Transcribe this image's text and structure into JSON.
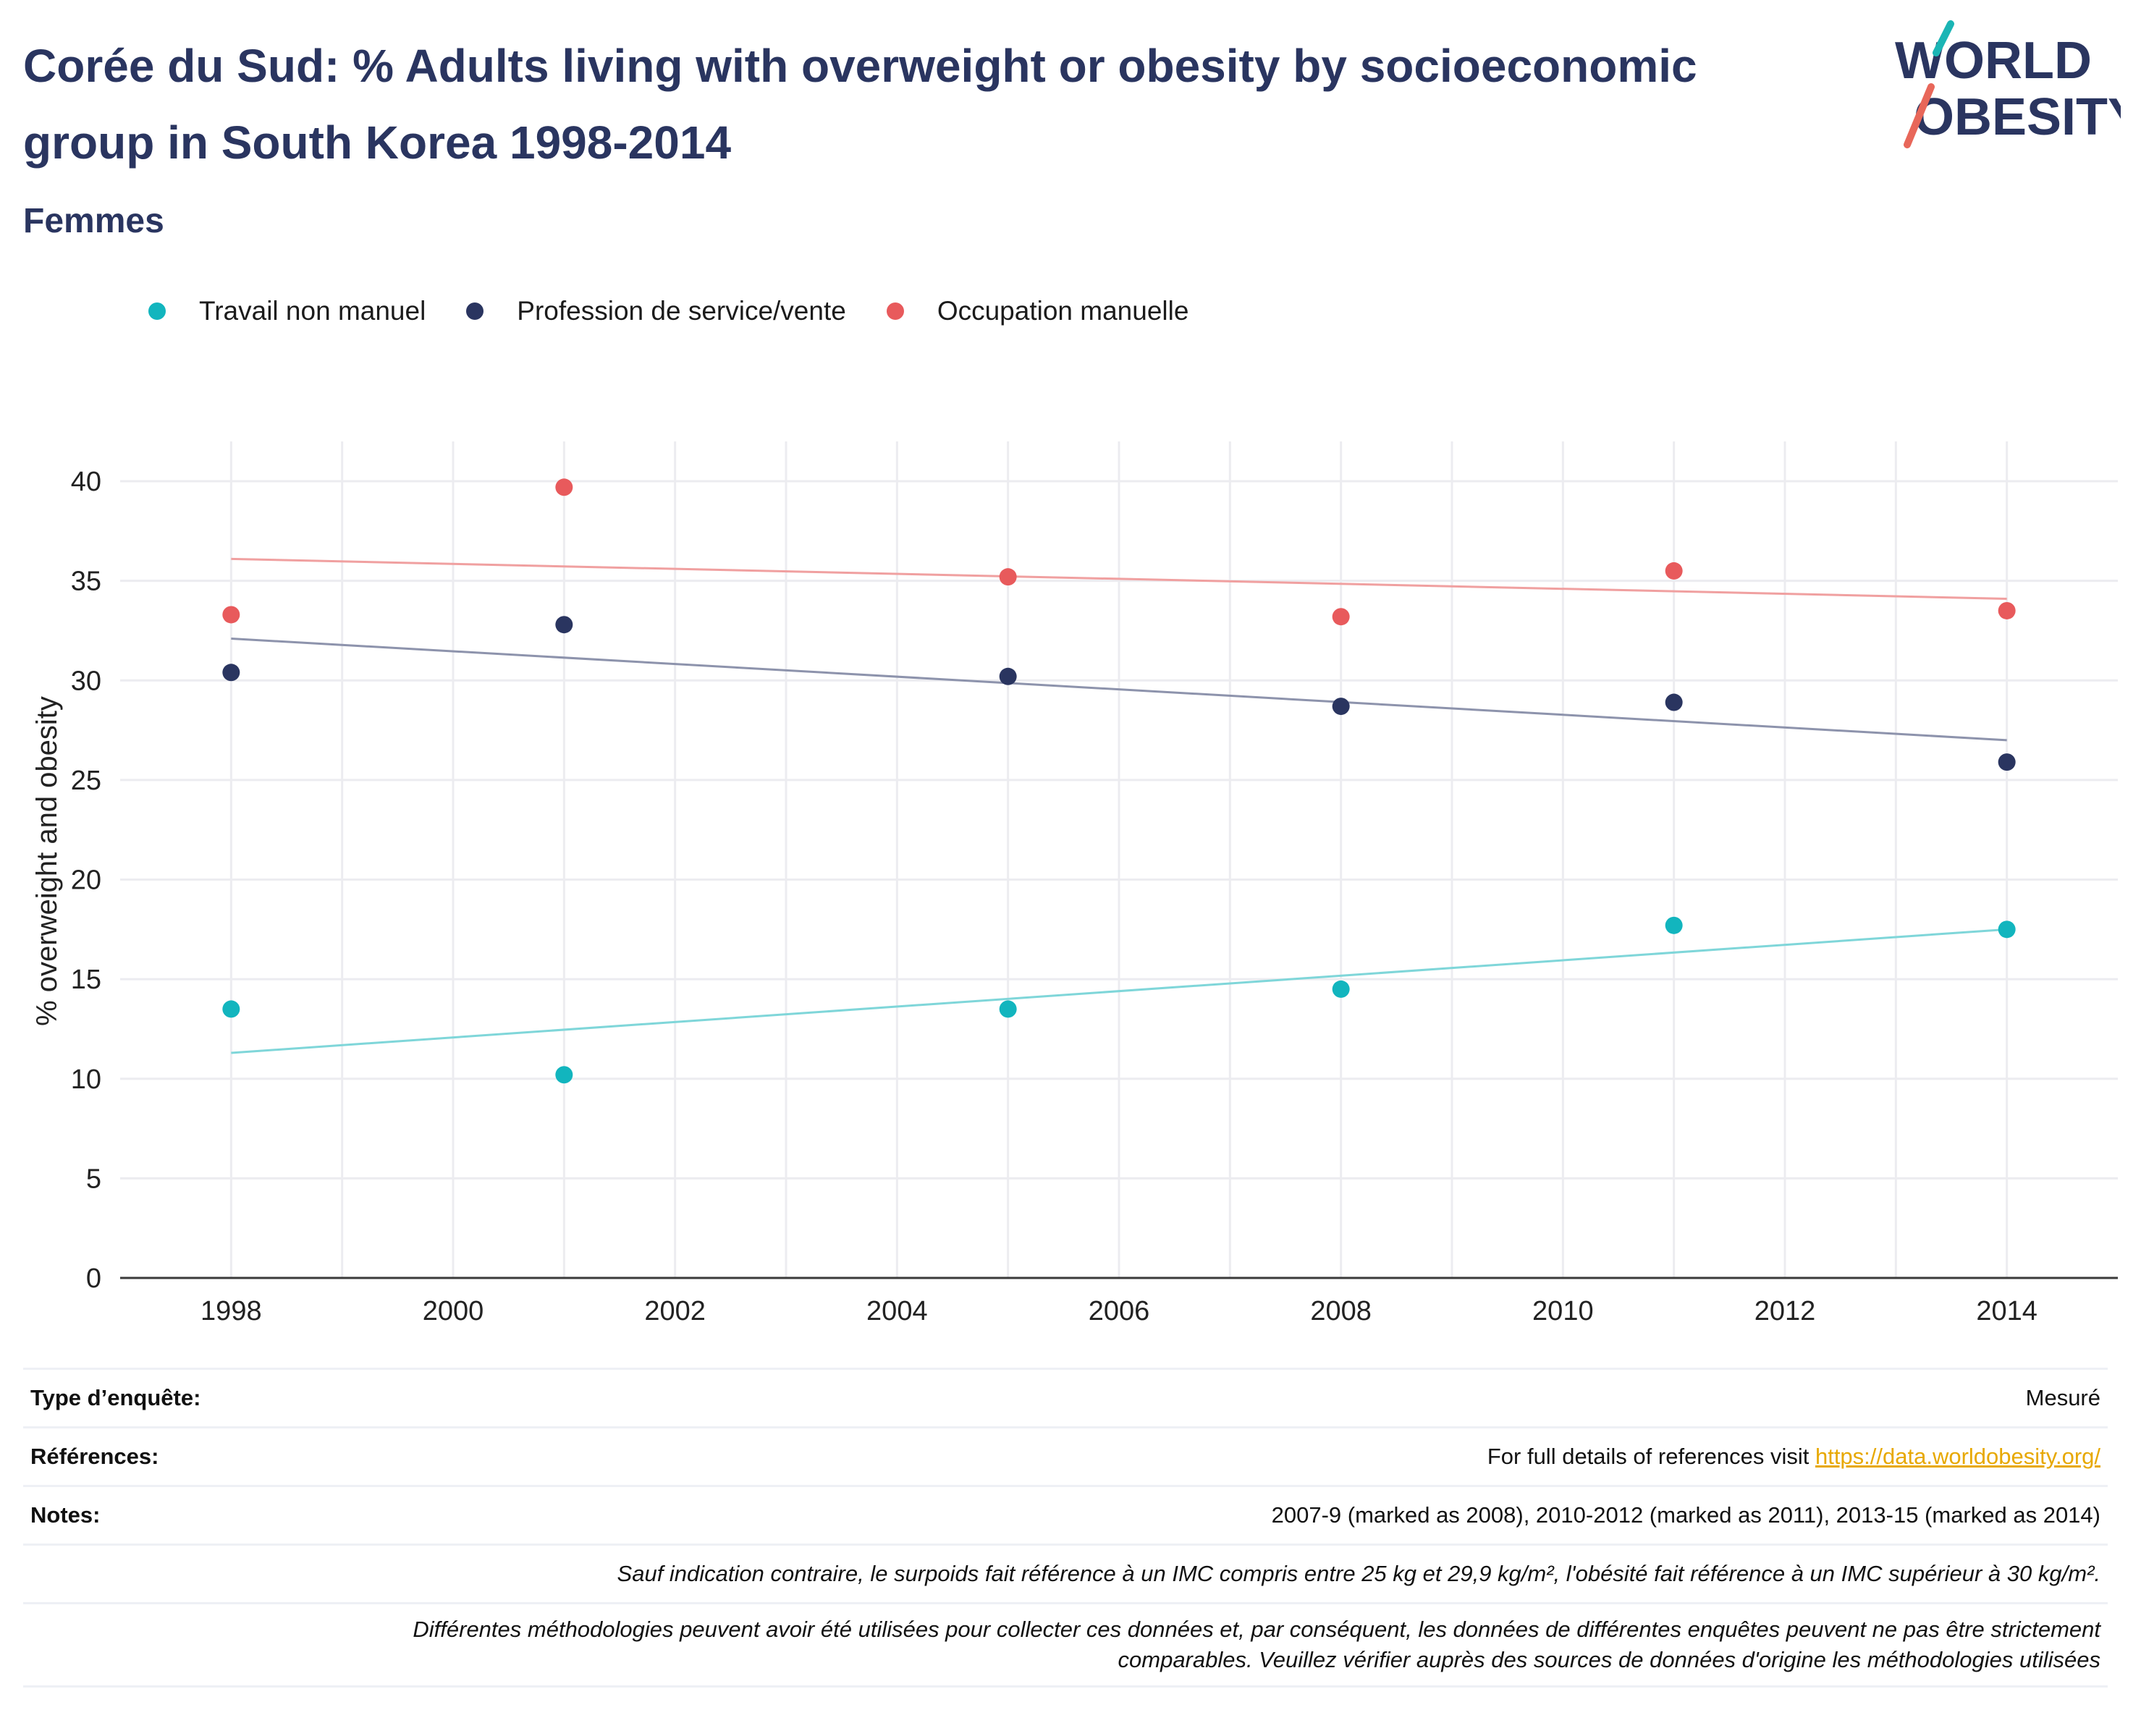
{
  "header": {
    "title": "Corée du Sud: % Adults living with overweight or obesity by socioeconomic group in South Korea 1998-2014",
    "subtitle": "Femmes"
  },
  "logo": {
    "line1": "WORLD",
    "line2": "OBESITY",
    "text_color": "#2a3560",
    "accent_teal": "#1bb5b5",
    "accent_red": "#e8675a"
  },
  "legend": [
    {
      "label": "Travail non manuel",
      "color": "#12b5be"
    },
    {
      "label": "Profession de service/vente",
      "color": "#2a3560"
    },
    {
      "label": "Occupation manuelle",
      "color": "#e85a5c"
    }
  ],
  "chart_data": {
    "type": "scatter",
    "title": "",
    "xlabel": "",
    "ylabel": "% overweight and obesity",
    "xlim": [
      1997,
      2015
    ],
    "ylim": [
      0,
      42
    ],
    "xticks": [
      1998,
      2000,
      2002,
      2004,
      2006,
      2008,
      2010,
      2012,
      2014
    ],
    "yticks": [
      0,
      5,
      10,
      15,
      20,
      25,
      30,
      35,
      40
    ],
    "grid": true,
    "trendlines": true,
    "series": [
      {
        "name": "Travail non manuel",
        "color": "#12b5be",
        "trend_color": "#7fd6d9",
        "points": [
          [
            1998,
            13.5
          ],
          [
            2001,
            10.2
          ],
          [
            2005,
            13.5
          ],
          [
            2008,
            14.5
          ],
          [
            2011,
            17.7
          ],
          [
            2014,
            17.5
          ]
        ],
        "trend": [
          [
            1998,
            11.3
          ],
          [
            2014,
            17.5
          ]
        ]
      },
      {
        "name": "Profession de service/vente",
        "color": "#2a3560",
        "trend_color": "#8d93ac",
        "points": [
          [
            1998,
            30.4
          ],
          [
            2001,
            32.8
          ],
          [
            2005,
            30.2
          ],
          [
            2008,
            28.7
          ],
          [
            2011,
            28.9
          ],
          [
            2014,
            25.9
          ]
        ],
        "trend": [
          [
            1998,
            32.1
          ],
          [
            2014,
            27.0
          ]
        ]
      },
      {
        "name": "Occupation manuelle",
        "color": "#e85a5c",
        "trend_color": "#f0a0a0",
        "points": [
          [
            1998,
            33.3
          ],
          [
            2001,
            39.7
          ],
          [
            2005,
            35.2
          ],
          [
            2008,
            33.2
          ],
          [
            2011,
            35.5
          ],
          [
            2014,
            33.5
          ]
        ],
        "trend": [
          [
            1998,
            36.1
          ],
          [
            2014,
            34.1
          ]
        ]
      }
    ]
  },
  "info": {
    "survey_type_label": "Type d’enquête:",
    "survey_type_value": "Mesuré",
    "references_label": "Références:",
    "references_prefix": "For full details of references visit ",
    "references_link": "https://data.worldobesity.org/",
    "notes_label": "Notes:",
    "notes_value": "2007-9 (marked as 2008), 2010-2012 (marked as 2011), 2013-15 (marked as 2014)",
    "definition": "Sauf indication contraire, le surpoids fait référence à un IMC compris entre 25 kg et 29,9 kg/m², l'obésité fait référence à un IMC supérieur à 30 kg/m².",
    "methodology_line1": "Différentes méthodologies peuvent avoir été utilisées pour collecter ces données et, par conséquent, les données de différentes enquêtes peuvent ne pas être strictement",
    "methodology_line2": "comparables. Veuillez vérifier auprès des sources de données d'origine les méthodologies utilisées"
  }
}
